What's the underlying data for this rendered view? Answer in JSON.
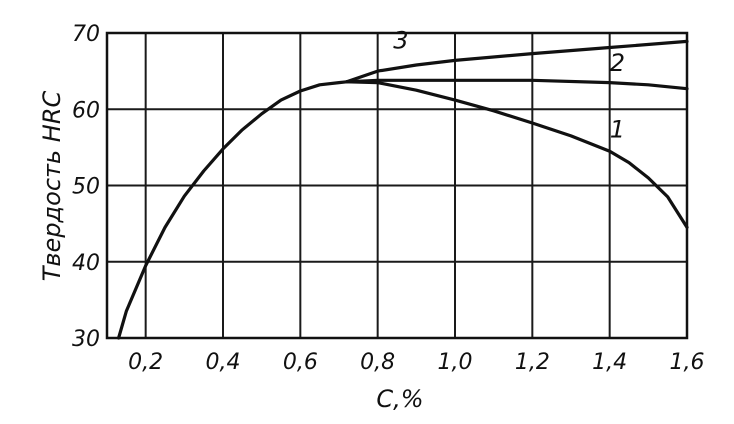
{
  "chart_data": {
    "type": "line",
    "title": "",
    "xlabel": "С,%",
    "ylabel": "Твердость HRC",
    "xlim": [
      0.1,
      1.6
    ],
    "ylim": [
      30,
      70
    ],
    "x_ticks": [
      {
        "value": 0.2,
        "label": "0,2"
      },
      {
        "value": 0.4,
        "label": "0,4"
      },
      {
        "value": 0.6,
        "label": "0,6"
      },
      {
        "value": 0.8,
        "label": "0,8"
      },
      {
        "value": 1.0,
        "label": "1,0"
      },
      {
        "value": 1.2,
        "label": "1,2"
      },
      {
        "value": 1.4,
        "label": "1,4"
      },
      {
        "value": 1.6,
        "label": "1,6"
      }
    ],
    "y_ticks": [
      {
        "value": 30,
        "label": "30"
      },
      {
        "value": 40,
        "label": "40"
      },
      {
        "value": 50,
        "label": "50"
      },
      {
        "value": 60,
        "label": "60"
      },
      {
        "value": 70,
        "label": "70"
      }
    ],
    "grid": true,
    "series": [
      {
        "name": "1",
        "x": [
          0.72,
          0.8,
          0.9,
          1.0,
          1.1,
          1.2,
          1.3,
          1.4,
          1.45,
          1.5,
          1.55,
          1.6
        ],
        "y": [
          63.6,
          63.5,
          62.5,
          61.2,
          59.8,
          58.2,
          56.5,
          54.5,
          53.0,
          51.0,
          48.5,
          44.5
        ]
      },
      {
        "name": "2",
        "x": [
          0.72,
          0.8,
          1.0,
          1.2,
          1.4,
          1.5,
          1.6
        ],
        "y": [
          63.6,
          63.8,
          63.8,
          63.8,
          63.5,
          63.2,
          62.7
        ]
      },
      {
        "name": "3",
        "x": [
          0.72,
          0.8,
          0.9,
          1.0,
          1.2,
          1.4,
          1.6
        ],
        "y": [
          63.6,
          65.0,
          65.8,
          66.4,
          67.3,
          68.1,
          68.9
        ]
      },
      {
        "name": "",
        "x": [
          0.13,
          0.15,
          0.2,
          0.25,
          0.3,
          0.35,
          0.4,
          0.45,
          0.5,
          0.55,
          0.6,
          0.65,
          0.7,
          0.72
        ],
        "y": [
          30.0,
          33.5,
          39.5,
          44.5,
          48.6,
          51.9,
          54.8,
          57.3,
          59.4,
          61.2,
          62.4,
          63.2,
          63.5,
          63.6
        ]
      }
    ],
    "curve_labels": [
      {
        "text": "1",
        "x": 1.42,
        "y": 56.3
      },
      {
        "text": "2",
        "x": 1.42,
        "y": 65.0
      },
      {
        "text": "3",
        "x": 0.86,
        "y": 68.0
      }
    ]
  }
}
